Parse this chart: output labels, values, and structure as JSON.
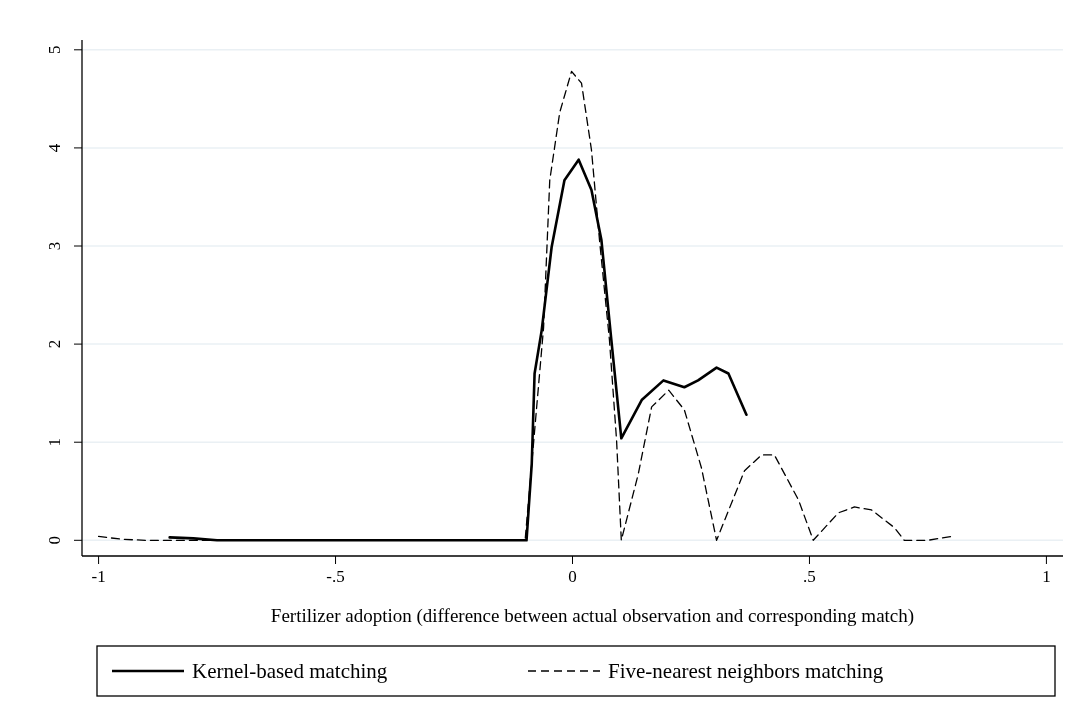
{
  "chart_data": {
    "type": "line",
    "xlabel": "Fertilizer adoption (difference between actual observation and corresponding match)",
    "xlim": [
      -1.035,
      1.035
    ],
    "ylim": [
      -0.16,
      5.1
    ],
    "xticks": [
      {
        "value": -1,
        "label": "-1"
      },
      {
        "value": -0.5,
        "label": "-.5"
      },
      0,
      {
        "value": 0.5,
        "label": ".5"
      },
      1
    ],
    "yticks": [
      0,
      1,
      2,
      3,
      4,
      5
    ],
    "grid": "y",
    "legend": "bottom",
    "marker": "none",
    "series": [
      {
        "name": "Kernel-based matching",
        "color": "#000000",
        "line_style": "solid",
        "x": [
          -0.85,
          -0.8,
          -0.75,
          -0.097,
          -0.086,
          -0.08,
          -0.065,
          -0.044,
          -0.017,
          0.013,
          0.04,
          0.061,
          0.082,
          0.103,
          0.146,
          0.192,
          0.236,
          0.265,
          0.304,
          0.329,
          0.367
        ],
        "values": [
          0.03,
          0.02,
          0,
          0,
          0.78,
          1.7,
          2.14,
          2.99,
          3.67,
          3.88,
          3.57,
          3.06,
          2.04,
          1.04,
          1.43,
          1.63,
          1.56,
          1.63,
          1.76,
          1.7,
          1.28
        ]
      },
      {
        "name": "Five-nearest neighbors matching",
        "color": "#000000",
        "line_style": "dashed",
        "x": [
          -1,
          -0.95,
          -0.9,
          -0.85,
          -0.1,
          -0.061,
          -0.048,
          -0.027,
          -0.002,
          0.019,
          0.04,
          0.057,
          0.078,
          0.093,
          0.103,
          0.139,
          0.167,
          0.203,
          0.236,
          0.272,
          0.304,
          0.363,
          0.399,
          0.426,
          0.477,
          0.508,
          0.561,
          0.595,
          0.631,
          0.679,
          0.7,
          0.75,
          0.8
        ],
        "values": [
          0.04,
          0.01,
          0,
          0,
          0,
          2.17,
          3.67,
          4.36,
          4.78,
          4.66,
          3.98,
          3.06,
          2.04,
          1.02,
          0,
          0.68,
          1.36,
          1.53,
          1.33,
          0.74,
          0,
          0.71,
          0.87,
          0.87,
          0.41,
          0,
          0.28,
          0.34,
          0.31,
          0.13,
          0,
          0,
          0.04
        ]
      }
    ]
  }
}
